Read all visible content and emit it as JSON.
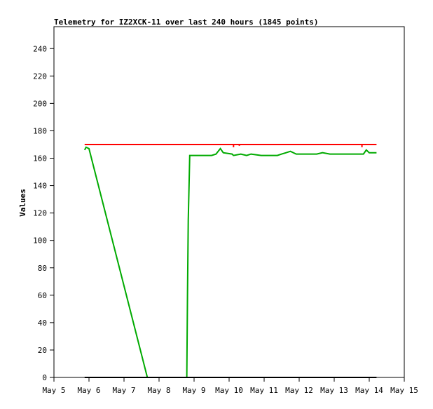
{
  "chart_data": {
    "type": "line",
    "title": "Telemetry for IZ2XCK-11 over last 240 hours (1845 points)",
    "xlabel": "",
    "ylabel": "Values",
    "x_ticks": [
      "May 5",
      "May 6",
      "May 7",
      "May 8",
      "May 9",
      "May 10",
      "May 11",
      "May 12",
      "May 13",
      "May 14",
      "May 15"
    ],
    "xlim": [
      "May 5",
      "May 15"
    ],
    "ylim": [
      0,
      256
    ],
    "y_ticks": [
      0,
      20,
      40,
      60,
      80,
      100,
      120,
      140,
      160,
      180,
      200,
      220,
      240
    ],
    "grid": false,
    "legend": "none",
    "series": [
      {
        "color": "#ff0000",
        "points": [
          [
            "May 5 21:00",
            170
          ],
          [
            "May 10 03:00",
            170
          ],
          [
            "May 10 03:00",
            168
          ],
          [
            "May 10 03:00",
            170
          ],
          [
            "May 10 07:00",
            170
          ],
          [
            "May 10 07:00",
            169
          ],
          [
            "May 10 07:00",
            170
          ],
          [
            "May 13 19:00",
            170
          ],
          [
            "May 13 19:00",
            168
          ],
          [
            "May 13 19:00",
            170
          ],
          [
            "May 14 05:00",
            170
          ]
        ]
      },
      {
        "color": "#00aa00",
        "points": [
          [
            "May 5 21:00",
            166
          ],
          [
            "May 5 22:00",
            168
          ],
          [
            "May 6 00:00",
            167
          ],
          [
            "May 7 16:00",
            0
          ],
          [
            "May 8 19:00",
            0
          ],
          [
            "May 8 19:30",
            60
          ],
          [
            "May 8 20:00",
            115
          ],
          [
            "May 8 21:00",
            162
          ],
          [
            "May 9 12:00",
            162
          ],
          [
            "May 9 15:00",
            163
          ],
          [
            "May 9 18:00",
            167
          ],
          [
            "May 9 20:00",
            164
          ],
          [
            "May 10 02:00",
            163
          ],
          [
            "May 10 03:00",
            162
          ],
          [
            "May 10 08:00",
            163
          ],
          [
            "May 10 12:00",
            162
          ],
          [
            "May 10 15:00",
            163
          ],
          [
            "May 10 22:00",
            162
          ],
          [
            "May 11 09:00",
            162
          ],
          [
            "May 11 12:00",
            163
          ],
          [
            "May 11 15:00",
            164
          ],
          [
            "May 11 18:00",
            165
          ],
          [
            "May 11 22:00",
            163
          ],
          [
            "May 12 12:00",
            163
          ],
          [
            "May 12 16:00",
            164
          ],
          [
            "May 12 21:00",
            163
          ],
          [
            "May 13 12:00",
            163
          ],
          [
            "May 13 20:00",
            163
          ],
          [
            "May 13 22:00",
            166
          ],
          [
            "May 14 00:00",
            164
          ],
          [
            "May 14 05:00",
            164
          ]
        ]
      },
      {
        "color": "#000000",
        "points": [
          [
            "May 5 21:00",
            0
          ],
          [
            "May 14 05:00",
            0
          ]
        ]
      }
    ]
  }
}
